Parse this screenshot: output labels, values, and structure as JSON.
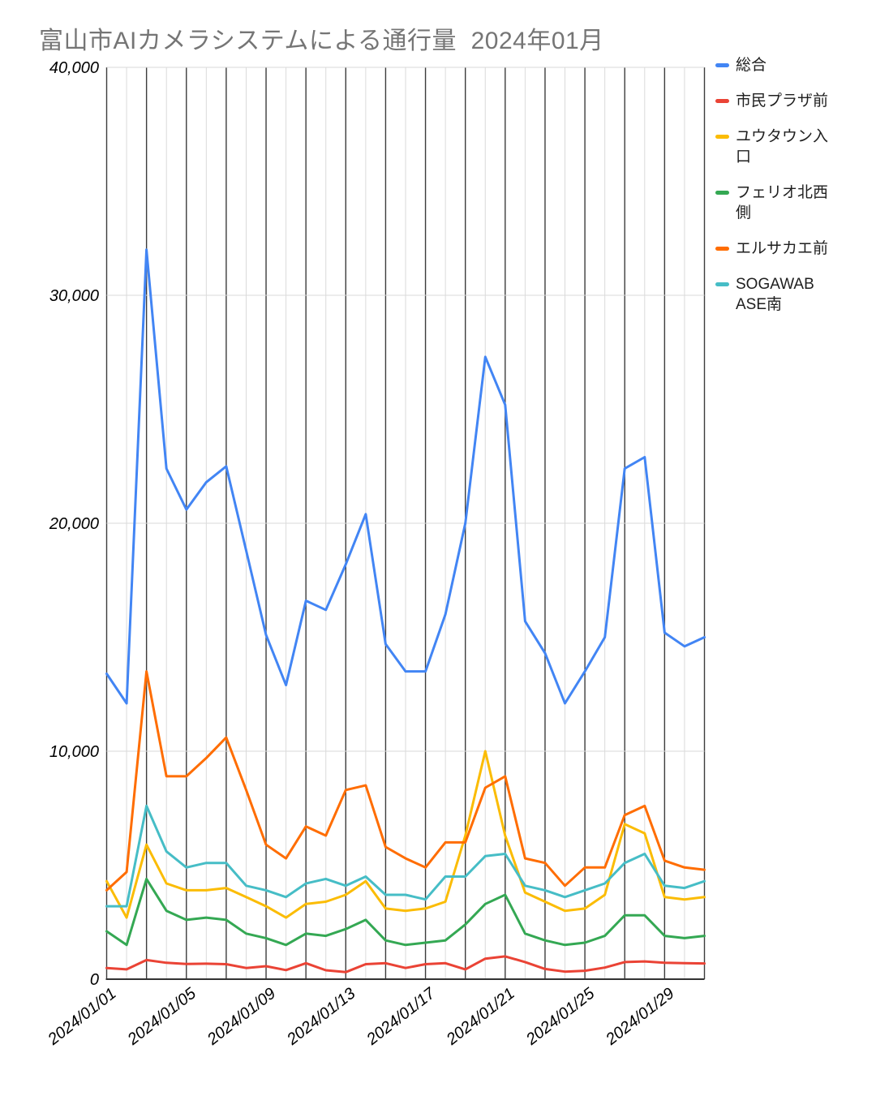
{
  "title": "富山市AIカメラシステムによる通行量  2024年01月",
  "y_axis": {
    "tick_values": [
      0,
      10000,
      20000,
      30000,
      40000
    ],
    "tick_labels": [
      "0",
      "10,000",
      "20,000",
      "30,000",
      "40,000"
    ]
  },
  "x_axis": {
    "tick_indices": [
      0,
      4,
      8,
      12,
      16,
      20,
      24,
      28
    ]
  },
  "grid_colors": {
    "major": "#3c3c3c",
    "minor": "#dadada",
    "axis": "#333333"
  },
  "chart_data": {
    "type": "line",
    "title": "富山市AIカメラシステムによる通行量  2024年01月",
    "xlabel": "",
    "ylabel": "",
    "ylim": [
      0,
      40000
    ],
    "grid": "vertical line per day (darker every 2nd day), horizontal every 10,000",
    "legend_position": "right",
    "x": [
      "2024/01/01",
      "2024/01/02",
      "2024/01/03",
      "2024/01/04",
      "2024/01/05",
      "2024/01/06",
      "2024/01/07",
      "2024/01/08",
      "2024/01/09",
      "2024/01/10",
      "2024/01/11",
      "2024/01/12",
      "2024/01/13",
      "2024/01/14",
      "2024/01/15",
      "2024/01/16",
      "2024/01/17",
      "2024/01/18",
      "2024/01/19",
      "2024/01/20",
      "2024/01/21",
      "2024/01/22",
      "2024/01/23",
      "2024/01/24",
      "2024/01/25",
      "2024/01/26",
      "2024/01/27",
      "2024/01/28",
      "2024/01/29",
      "2024/01/30",
      "2024/01/31"
    ],
    "series": [
      {
        "name": "総合",
        "display": "総合",
        "color": "#4285f4",
        "values": [
          13400,
          12100,
          32000,
          22400,
          20600,
          21800,
          22500,
          18800,
          15100,
          12900,
          16600,
          16200,
          18200,
          20400,
          14700,
          13500,
          13500,
          16000,
          20000,
          27300,
          25200,
          15700,
          14300,
          12100,
          13500,
          15000,
          22400,
          22900,
          15200,
          14600,
          15000
        ]
      },
      {
        "name": "市民プラザ前",
        "display": "市民プラザ前",
        "color": "#ea4335",
        "values": [
          490,
          430,
          840,
          720,
          670,
          680,
          660,
          490,
          570,
          400,
          700,
          390,
          310,
          660,
          700,
          490,
          660,
          700,
          430,
          900,
          1000,
          750,
          450,
          330,
          370,
          510,
          750,
          780,
          720,
          700,
          690
        ]
      },
      {
        "name": "ユウタウン入口",
        "display": "ユウタウン入\n口",
        "color": "#fbbc04",
        "values": [
          4300,
          2700,
          5900,
          4200,
          3900,
          3900,
          4000,
          3600,
          3200,
          2700,
          3300,
          3400,
          3700,
          4300,
          3100,
          3000,
          3100,
          3400,
          6300,
          10000,
          6300,
          3800,
          3400,
          3000,
          3100,
          3700,
          6800,
          6400,
          3600,
          3500,
          3600
        ]
      },
      {
        "name": "フェリオ北西側",
        "display": "フェリオ北西\n側",
        "color": "#34a853",
        "values": [
          2100,
          1500,
          4400,
          3000,
          2600,
          2700,
          2600,
          2000,
          1800,
          1500,
          2000,
          1900,
          2200,
          2600,
          1700,
          1500,
          1600,
          1700,
          2400,
          3300,
          3700,
          2000,
          1700,
          1500,
          1600,
          1900,
          2800,
          2800,
          1900,
          1800,
          1900
        ]
      },
      {
        "name": "エルサカエ前",
        "display": "エルサカエ前",
        "color": "#ff6d01",
        "values": [
          3900,
          4700,
          13500,
          8900,
          8900,
          9700,
          10600,
          8300,
          5900,
          5300,
          6700,
          6300,
          8300,
          8500,
          5800,
          5300,
          4900,
          6000,
          6000,
          8400,
          8900,
          5300,
          5100,
          4100,
          4900,
          4900,
          7200,
          7600,
          5200,
          4900,
          4800
        ]
      },
      {
        "name": "SOGAWABASE南",
        "display": "SOGAWAB\nASE南",
        "color": "#46bdc6",
        "values": [
          3200,
          3200,
          7600,
          5600,
          4900,
          5100,
          5100,
          4100,
          3900,
          3600,
          4200,
          4400,
          4100,
          4500,
          3700,
          3700,
          3500,
          4500,
          4500,
          5400,
          5500,
          4100,
          3900,
          3600,
          3900,
          4200,
          5100,
          5500,
          4100,
          4000,
          4300
        ]
      }
    ]
  }
}
